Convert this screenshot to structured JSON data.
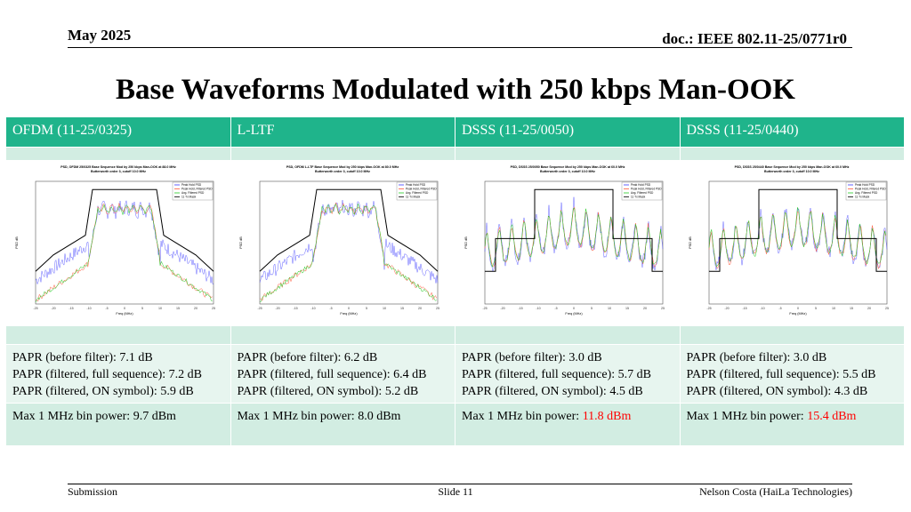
{
  "header": {
    "date": "May 2025",
    "doc": "doc.: IEEE 802.11-25/0771r0"
  },
  "title": "Base Waveforms Modulated with 250 kbps Man-OOK",
  "columns": [
    {
      "label": "OFDM (11-25/0325)",
      "papr_before": "PAPR (before filter): 7.1 dB",
      "papr_full": "PAPR (filtered, full sequence): 7.2 dB",
      "papr_on": "PAPR (filtered, ON symbol): 5.9 dB",
      "bin_prefix": "Max 1 MHz bin power: ",
      "bin_value": "9.7 dBm",
      "plot_title": "PSD, OFDM 25/0325 Base Sequence Mod by 250 kbps Man-OOK at 88.0 MHz",
      "plot_subtitle": "Butterworth order 3, cutoff 10.0 MHz"
    },
    {
      "label": "L-LTF",
      "papr_before": "PAPR (before filter): 6.2 dB",
      "papr_full": "PAPR (filtered, full sequence): 6.4 dB",
      "papr_on": "PAPR (filtered, ON symbol): 5.2 dB",
      "bin_prefix": "Max 1 MHz bin power: ",
      "bin_value": "8.0 dBm",
      "plot_title": "PSD, OFDM L-LTF Base Sequence Mod by 250 kbps Man-OOK at 80.0 MHz",
      "plot_subtitle": "Butterworth order 3, cutoff 10.0 MHz"
    },
    {
      "label": "DSSS (11-25/0050)",
      "papr_before": "PAPR (before filter): 3.0 dB",
      "papr_full": "PAPR (filtered, full sequence): 5.7 dB",
      "papr_on": "PAPR (filtered, ON symbol): 4.5 dB",
      "bin_prefix": "Max 1 MHz bin power: ",
      "bin_value": "11.8 dBm",
      "plot_title": "PSD, DSSS 25/0050 Base Sequence Mod by 250 kbps Man-OOK at 60.0 MHz",
      "plot_subtitle": "Butterworth order 3, cutoff 10.0 MHz"
    },
    {
      "label": "DSSS (11-25/0440)",
      "papr_before": "PAPR (before filter): 3.0 dB",
      "papr_full": "PAPR (filtered, full sequence): 5.5 dB",
      "papr_on": "PAPR (filtered, ON symbol): 4.3 dB",
      "bin_prefix": "Max 1 MHz bin power: ",
      "bin_value": "15.4 dBm",
      "plot_title": "PSD, DSSS 25/0440 Base Sequence Mod by 250 kbps Man-OOK at 60.0 MHz",
      "plot_subtitle": "Butterworth order 3, cutoff 10.0 MHz"
    }
  ],
  "plot_common": {
    "xlabel": "Freq (MHz)",
    "ylabel": "PSD dB",
    "xticks": [
      "-25",
      "-20",
      "-15",
      "-10",
      "-5",
      "0",
      "5",
      "10",
      "15",
      "20",
      "25"
    ],
    "legend": [
      "Peak Hold PSD",
      "Peak Hold, Filtered PSD",
      "Avg. Filtered PSD",
      "11 Tx Mask"
    ],
    "colors": {
      "peak": "#3b3bff",
      "filtered": "#ff5a3c",
      "avg": "#22cc22",
      "mask": "#000000",
      "bad_value": "#ff0000"
    }
  },
  "footer": {
    "left": "Submission",
    "center": "Slide 11",
    "right": "Nelson Costa (HaiLa Technologies)"
  }
}
